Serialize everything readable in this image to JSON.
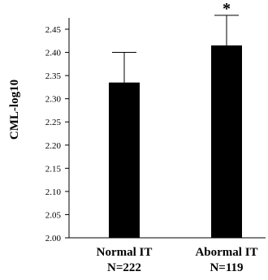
{
  "chart_data": {
    "type": "bar",
    "categories": [
      {
        "line1": "Normal IT",
        "line2": "N=222"
      },
      {
        "line1": "Abormal IT",
        "line2": "N=119"
      }
    ],
    "values": [
      2.335,
      2.415
    ],
    "error_upper": [
      2.4,
      2.48
    ],
    "significance": [
      "",
      "*"
    ],
    "title": "",
    "xlabel": "",
    "ylabel": "CML-log10",
    "ylim": [
      2.0,
      2.45
    ],
    "yticks": [
      "2.00",
      "2.05",
      "2.10",
      "2.15",
      "2.20",
      "2.25",
      "2.30",
      "2.35",
      "2.40",
      "2.45"
    ],
    "grid": false,
    "bar_color": "#000000"
  }
}
